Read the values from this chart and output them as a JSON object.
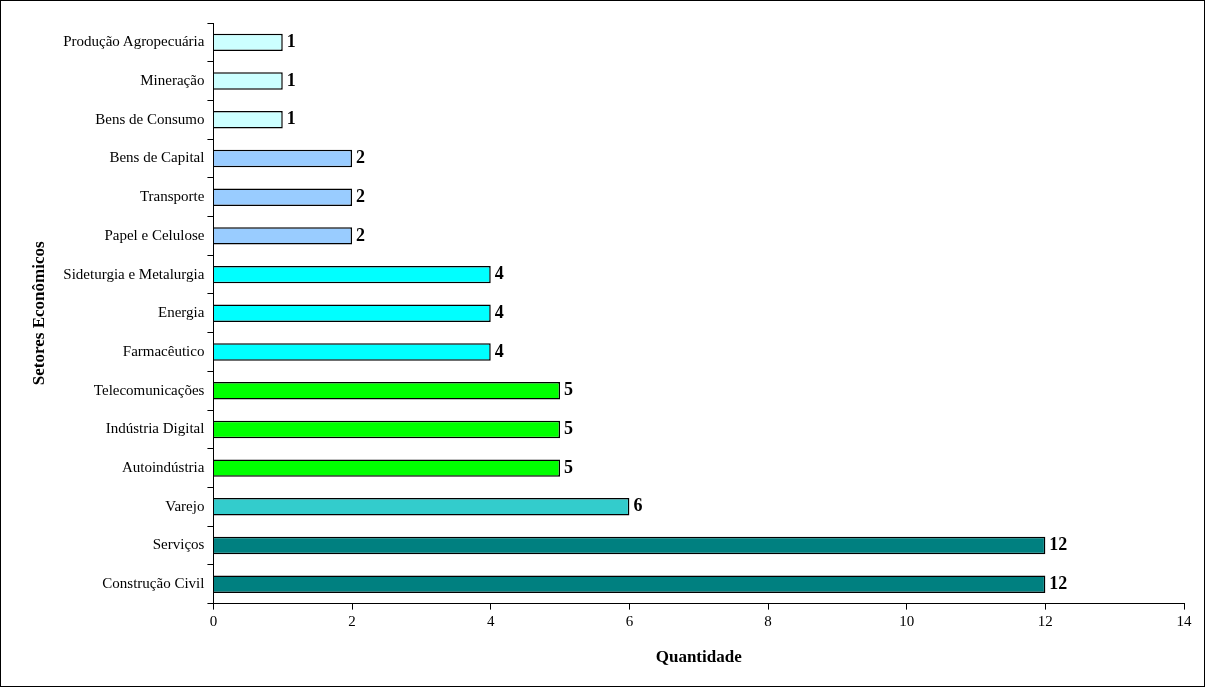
{
  "chart_data": {
    "type": "bar",
    "orientation": "horizontal",
    "xlabel": "Quantidade",
    "ylabel": "Setores Econômicos",
    "categories": [
      "Produção Agropecuária",
      "Mineração",
      "Bens de Consumo",
      "Bens de Capital",
      "Transporte",
      "Papel e Celulose",
      "Sideturgia e Metalurgia",
      "Energia",
      "Farmacêutico",
      "Telecomunicações",
      "Indústria Digital",
      "Autoindústria",
      "Varejo",
      "Serviços",
      "Construção Civil"
    ],
    "values": [
      1,
      1,
      1,
      2,
      2,
      2,
      4,
      4,
      4,
      5,
      5,
      5,
      6,
      12,
      12
    ],
    "colors": [
      "#ccffff",
      "#ccffff",
      "#ccffff",
      "#99ccff",
      "#99ccff",
      "#99ccff",
      "#00ffff",
      "#00ffff",
      "#00ffff",
      "#00ff00",
      "#00ff00",
      "#00ff00",
      "#33cccc",
      "#008080",
      "#008080"
    ],
    "xlim": [
      0,
      14
    ],
    "xticks": [
      0,
      2,
      4,
      6,
      8,
      10,
      12,
      14
    ],
    "grid": false,
    "legend": false,
    "data_labels": true
  }
}
